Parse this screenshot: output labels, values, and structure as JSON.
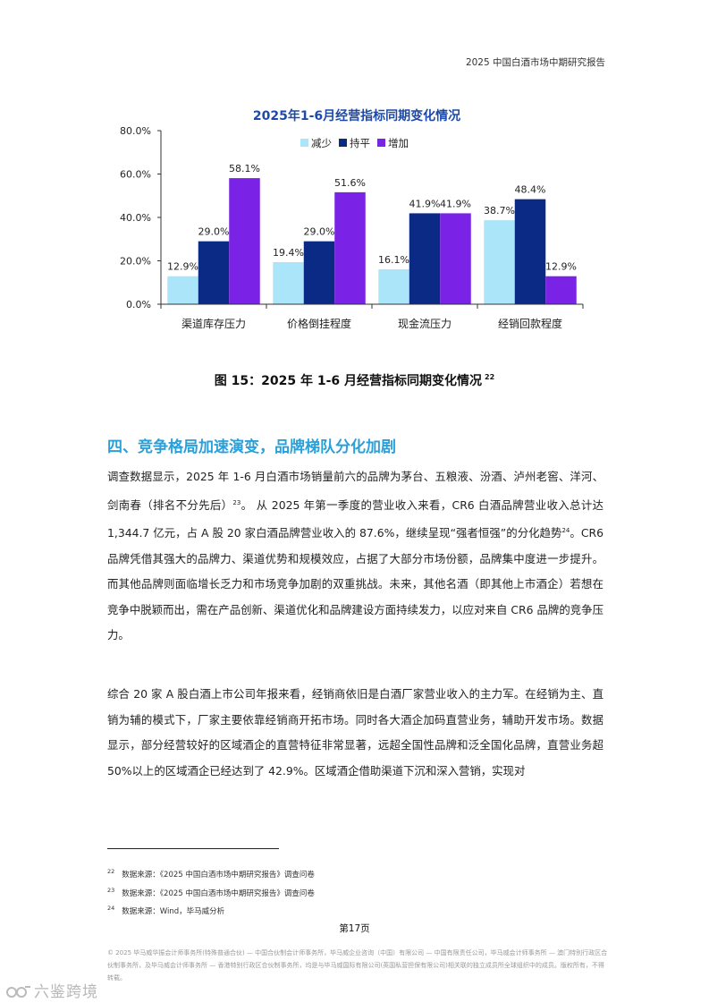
{
  "header": {
    "title": "2025 中国白酒市场中期研究报告"
  },
  "chart_data": {
    "type": "bar",
    "title": "2025年1-6月经营指标同期变化情况",
    "categories": [
      "渠道库存压力",
      "价格倒挂程度",
      "现金流压力",
      "经销回款程度"
    ],
    "series": [
      {
        "name": "减少",
        "color": "#abe5fa",
        "values": [
          12.9,
          19.4,
          16.1,
          38.7
        ]
      },
      {
        "name": "持平",
        "color": "#0b2a86",
        "values": [
          29.0,
          29.0,
          41.9,
          48.4
        ]
      },
      {
        "name": "增加",
        "color": "#7a22e6",
        "values": [
          58.1,
          51.6,
          41.9,
          12.9
        ]
      }
    ],
    "data_labels": [
      [
        "12.9%",
        "29.0%",
        "58.1%"
      ],
      [
        "19.4%",
        "29.0%",
        "51.6%"
      ],
      [
        "16.1%",
        "41.9%",
        "41.9%"
      ],
      [
        "38.7%",
        "48.4%",
        "12.9%"
      ]
    ],
    "y_ticks": [
      "0.0%",
      "20.0%",
      "40.0%",
      "60.0%",
      "80.0%"
    ],
    "ylim": [
      0,
      80
    ],
    "legend_position": "top-center",
    "grid": false,
    "title_color": "#1d4aa8"
  },
  "figure": {
    "caption": "图 15：2025 年 1-6 月经营指标同期变化情况",
    "footnote_ref": "22"
  },
  "section": {
    "heading": "四、竞争格局加速演变，品牌梯队分化加剧"
  },
  "paragraph1": {
    "part1": "调查数据显示，2025 年 1-6 月白酒市场销量前六的品牌为茅台、五粮液、汾酒、泸州老窖、洋河、剑南春（排名不分先后）",
    "ref1": "23",
    "part2": "。 从 2025 年第一季度的营业收入来看，CR6 白酒品牌营业收入总计达 1,344.7 亿元，占 A 股 20 家白酒品牌营业收入的 87.6%，继续呈现“强者恒强”的分化趋势",
    "ref2": "24",
    "part3": "。CR6 品牌凭借其强大的品牌力、渠道优势和规模效应，占据了大部分市场份额，品牌集中度进一步提升。而其他品牌则面临增长乏力和市场竞争加剧的双重挑战。未来，其他名酒（即其他上市酒企）若想在竞争中脱颖而出，需在产品创新、渠道优化和品牌建设方面持续发力，以应对来自 CR6 品牌的竞争压力。"
  },
  "paragraph2": {
    "text": "综合 20 家 A 股白酒上市公司年报来看，经销商依旧是白酒厂家营业收入的主力军。在经销为主、直销为辅的模式下，厂家主要依靠经销商开拓市场。同时各大酒企加码直营业务，辅助开发市场。数据显示，部分经营较好的区域酒企的直营特征非常显著，远超全国性品牌和泛全国化品牌，直营业务超 50%以上的区域酒企已经达到了 42.9%。区域酒企借助渠道下沉和深入营销，实现对"
  },
  "footnotes": [
    {
      "num": "22",
      "text": "数据来源：《2025 中国白酒市场中期研究报告》调查问卷"
    },
    {
      "num": "23",
      "text": "数据来源：《2025 中国白酒市场中期研究报告》调查问卷"
    },
    {
      "num": "24",
      "text": "数据来源：Wind，毕马威分析"
    }
  ],
  "page_number": "第17页",
  "legal_text": "© 2025 毕马威华振会计师事务所(特殊普通合伙) — 中国合伙制会计师事务所，毕马威企业咨询（中国）有限公司 — 中国有限责任公司，毕马威会计师事务所 — 澳门特别行政区合伙制事务所，及毕马威会计师事务所 — 香港特别行政区合伙制事务所，均是与毕马威国际有限公司(英国私营担保有限公司)相关联的独立成员所全球组织中的成员。版权所有，不得转载。",
  "watermark": {
    "text": "六鉴跨境"
  }
}
